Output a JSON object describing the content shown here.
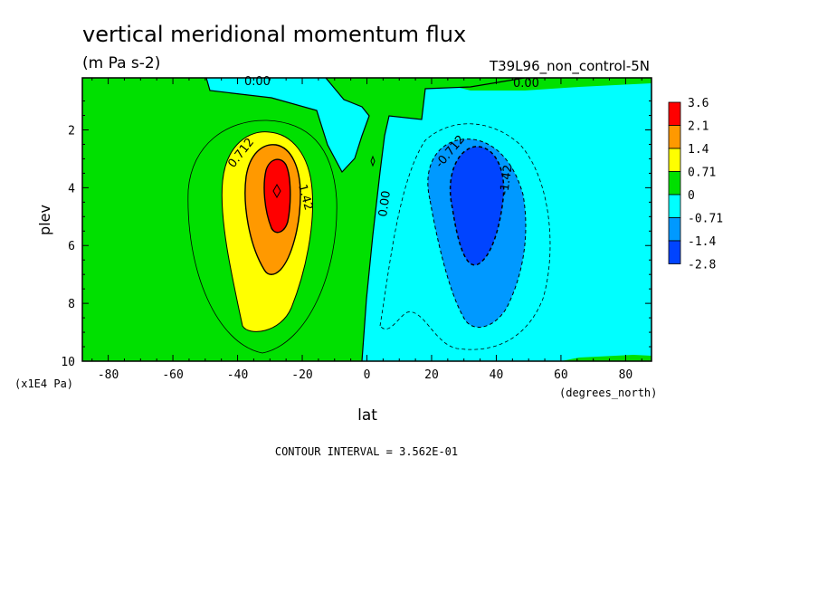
{
  "chart_data": {
    "type": "contour",
    "title": "vertical meridional momentum flux",
    "units": "(m Pa s-2)",
    "experiment": "T39L96_non_control-5N",
    "xlabel": "lat",
    "xunits": "(degrees_north)",
    "ylabel": "plev",
    "yunits": "(x1E4 Pa)",
    "xlim": [
      -88,
      88
    ],
    "ylim": [
      10,
      0.2
    ],
    "x_ticks": [
      -80,
      -60,
      -40,
      -20,
      0,
      20,
      40,
      60,
      80
    ],
    "x_tick_labels": [
      "-80",
      "-60",
      "-40",
      "-20",
      "0",
      "20",
      "40",
      "60",
      "80"
    ],
    "y_ticks": [
      2,
      4,
      6,
      8,
      10
    ],
    "y_tick_labels": [
      "2",
      "4",
      "6",
      "8",
      "10"
    ],
    "footer": "CONTOUR INTERVAL = 3.562E-01",
    "contour_labels": [
      "0.00",
      "0.00",
      "0.00",
      "0.712",
      "1.42",
      "-0.712",
      "-1.42"
    ],
    "legend": {
      "placement": "right",
      "labels": [
        "3.6",
        "2.1",
        "1.4",
        "0.71",
        "0",
        "-0.71",
        "-1.4",
        "-2.8"
      ],
      "colors": [
        "#ff0000",
        "#ff9900",
        "#ffff00",
        "#00e000",
        "#00ffff",
        "#0099ff",
        "#0044ff"
      ]
    },
    "features": [
      {
        "name": "positive-maximum",
        "lat": -29,
        "plev": 4.0,
        "value": 2.5
      },
      {
        "name": "negative-minimum",
        "lat": 34,
        "plev": 4.5,
        "value": -1.9
      }
    ]
  }
}
